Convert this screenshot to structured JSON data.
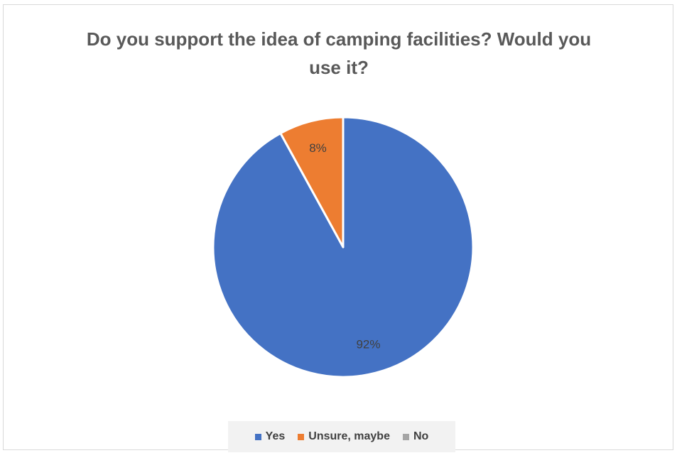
{
  "chart_data": {
    "type": "pie",
    "title": "Do you support the idea of camping facilities? Would you use it?",
    "categories": [
      "Yes",
      "Unsure, maybe",
      "No"
    ],
    "values": [
      92,
      8,
      0
    ],
    "data_labels": [
      "92%",
      "8%",
      ""
    ],
    "colors": [
      "#4472C4",
      "#ED7D31",
      "#A5A5A5"
    ],
    "legend": "bottom"
  }
}
